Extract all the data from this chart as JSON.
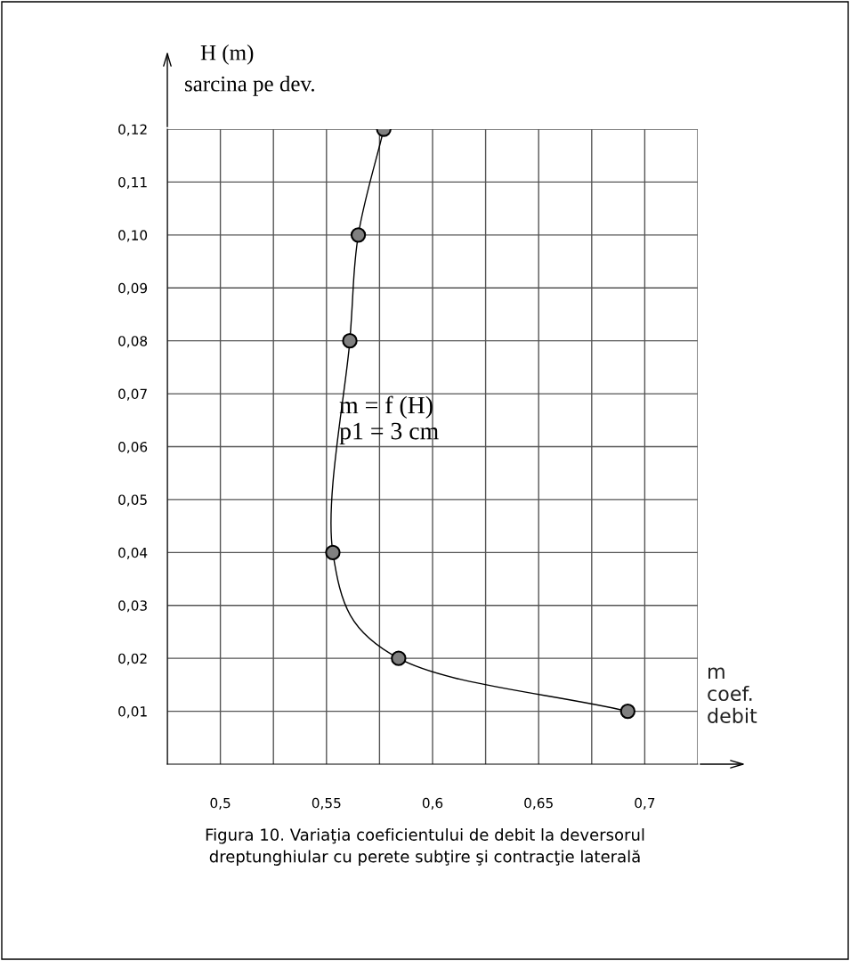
{
  "chart_data": {
    "type": "line",
    "xlabel": "m\ncoef.\ndebit",
    "ylabel": "H (m)\nsarcina pe dev.",
    "series": [
      {
        "color": "#000000",
        "x": [
          0.692,
          0.584,
          0.553,
          0.561,
          0.565,
          0.577
        ],
        "values": [
          0.01,
          0.02,
          0.04,
          0.08,
          0.1,
          0.12
        ]
      }
    ],
    "marker": "circle",
    "line_style": "solid",
    "xlim": [
      0.475,
      0.725
    ],
    "ylim": [
      0,
      0.12
    ],
    "xticks": [
      {
        "value": 0.475,
        "label": null
      },
      {
        "value": 0.5,
        "label": "0,5"
      },
      {
        "value": 0.525,
        "label": null
      },
      {
        "value": 0.55,
        "label": "0,55"
      },
      {
        "value": 0.575,
        "label": null
      },
      {
        "value": 0.6,
        "label": "0,6"
      },
      {
        "value": 0.625,
        "label": null
      },
      {
        "value": 0.65,
        "label": "0,65"
      },
      {
        "value": 0.675,
        "label": null
      },
      {
        "value": 0.7,
        "label": "0,7"
      },
      {
        "value": 0.725,
        "label": null
      }
    ],
    "yticks": [
      {
        "value": 0.01,
        "label": "0,01"
      },
      {
        "value": 0.02,
        "label": "0,02"
      },
      {
        "value": 0.03,
        "label": "0,03"
      },
      {
        "value": 0.04,
        "label": "0,04"
      },
      {
        "value": 0.05,
        "label": "0,05"
      },
      {
        "value": 0.06,
        "label": "0,06"
      },
      {
        "value": 0.07,
        "label": "0,07"
      },
      {
        "value": 0.08,
        "label": "0,08"
      },
      {
        "value": 0.09,
        "label": "0,09"
      },
      {
        "value": 0.1,
        "label": "0,10"
      },
      {
        "value": 0.11,
        "label": "0,11"
      },
      {
        "value": 0.12,
        "label": "0,12"
      }
    ],
    "grid": true,
    "annotations": [
      {
        "text": "m = f (H)\np1 = 3 cm",
        "x": 0.556,
        "y": 0.065
      },
      "Figura 10. Variaţia coeficientului de debit la deversorul\ndreptunghiular cu perete subţire şi contracţie laterală"
    ]
  }
}
